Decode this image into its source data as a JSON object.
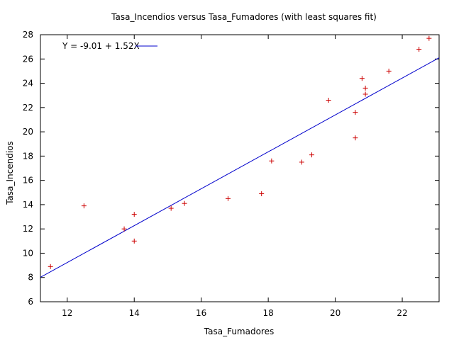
{
  "chart_data": {
    "type": "scatter",
    "title": "Tasa_Incendios versus Tasa_Fumadores (with least squares fit)",
    "xlabel": "Tasa_Fumadores",
    "ylabel": "Tasa_Incendios",
    "xlim": [
      11.2,
      23.1
    ],
    "ylim": [
      6,
      28
    ],
    "xticks": [
      12,
      14,
      16,
      18,
      20,
      22
    ],
    "yticks": [
      6,
      8,
      10,
      12,
      14,
      16,
      18,
      20,
      22,
      24,
      26,
      28
    ],
    "grid": false,
    "legend_position": "top-left",
    "series": [
      {
        "kind": "points",
        "marker": "+",
        "color": "#cc0000",
        "points": [
          [
            11.5,
            8.9
          ],
          [
            12.5,
            13.9
          ],
          [
            13.7,
            12.0
          ],
          [
            14.0,
            13.2
          ],
          [
            14.0,
            11.0
          ],
          [
            15.1,
            13.7
          ],
          [
            15.5,
            14.1
          ],
          [
            16.8,
            14.5
          ],
          [
            17.8,
            14.9
          ],
          [
            18.1,
            17.6
          ],
          [
            19.0,
            17.5
          ],
          [
            19.3,
            18.1
          ],
          [
            19.8,
            22.6
          ],
          [
            20.6,
            21.6
          ],
          [
            20.6,
            19.5
          ],
          [
            20.8,
            24.4
          ],
          [
            20.9,
            23.6
          ],
          [
            20.9,
            23.1
          ],
          [
            21.6,
            25.0
          ],
          [
            22.5,
            26.8
          ],
          [
            22.8,
            27.7
          ]
        ]
      },
      {
        "kind": "fit",
        "name": "Y = -9.01 + 1.52X",
        "color": "#0000cc",
        "intercept": -9.01,
        "slope": 1.52
      }
    ]
  }
}
